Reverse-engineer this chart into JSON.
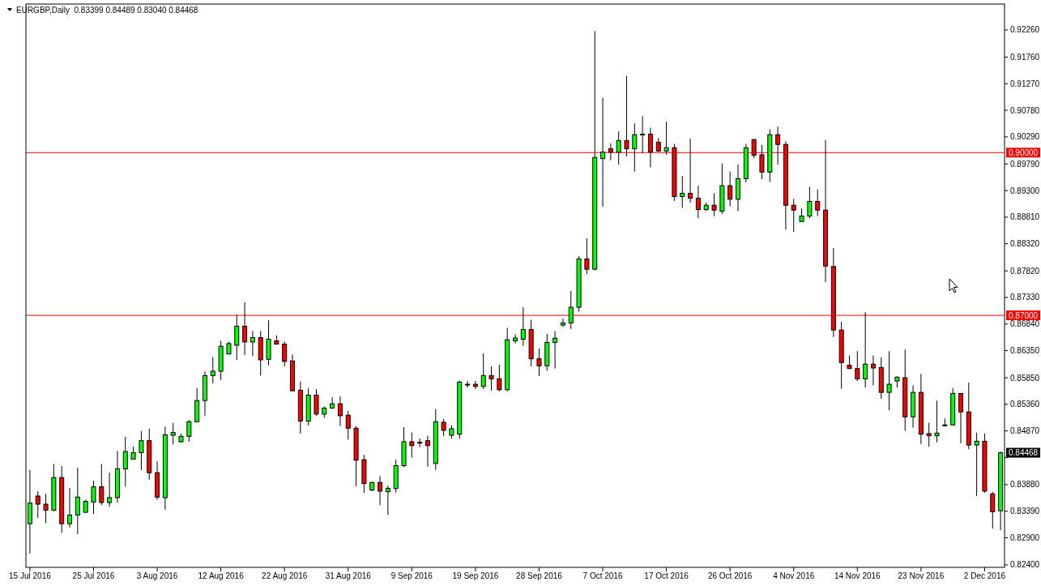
{
  "chart_data": {
    "type": "candlestick",
    "title": "EURGBP,Daily  0.83399 0.84489 0.83040 0.84468",
    "categories": [
      "15 Jul 2016",
      null,
      null,
      null,
      null,
      null,
      null,
      null,
      "25 Jul 2016",
      null,
      null,
      null,
      null,
      null,
      null,
      null,
      "3 Aug 2016",
      null,
      null,
      null,
      null,
      null,
      null,
      null,
      "12 Aug 2016",
      null,
      null,
      null,
      null,
      null,
      null,
      null,
      "22 Aug 2016",
      null,
      null,
      null,
      null,
      null,
      null,
      null,
      "31 Aug 2016",
      null,
      null,
      null,
      null,
      null,
      null,
      null,
      "9 Sep 2016",
      null,
      null,
      null,
      null,
      null,
      null,
      null,
      "19 Sep 2016",
      null,
      null,
      null,
      null,
      null,
      null,
      null,
      "28 Sep 2016",
      null,
      null,
      null,
      null,
      null,
      null,
      null,
      "7 Oct 2016",
      null,
      null,
      null,
      null,
      null,
      null,
      null,
      "17 Oct 2016",
      null,
      null,
      null,
      null,
      null,
      null,
      null,
      "26 Oct 2016",
      null,
      null,
      null,
      null,
      null,
      null,
      null,
      "4 Nov 2016",
      null,
      null,
      null,
      null,
      null,
      null,
      null,
      "14 Nov 2016",
      null,
      null,
      null,
      null,
      null,
      null,
      null,
      "23 Nov 2016",
      null,
      null,
      null,
      null,
      null,
      null,
      null,
      "2 Dec 2016",
      null,
      null
    ],
    "ohlc": [
      [
        0.8316,
        0.8415,
        0.8261,
        0.8354
      ],
      [
        0.8367,
        0.8376,
        0.8327,
        0.8352
      ],
      [
        0.8352,
        0.8371,
        0.8317,
        0.8341
      ],
      [
        0.8341,
        0.8426,
        0.8339,
        0.8401
      ],
      [
        0.8401,
        0.8422,
        0.8299,
        0.8316
      ],
      [
        0.8316,
        0.8382,
        0.8309,
        0.8332
      ],
      [
        0.8332,
        0.8419,
        0.8297,
        0.8365
      ],
      [
        0.8337,
        0.836,
        0.8336,
        0.8357
      ],
      [
        0.8356,
        0.8395,
        0.8334,
        0.8384
      ],
      [
        0.8384,
        0.8426,
        0.835,
        0.8355
      ],
      [
        0.8355,
        0.841,
        0.8347,
        0.8364
      ],
      [
        0.8364,
        0.845,
        0.8355,
        0.8417
      ],
      [
        0.8417,
        0.8476,
        0.8384,
        0.8449
      ],
      [
        0.8435,
        0.8458,
        0.8434,
        0.8447
      ],
      [
        0.8447,
        0.8487,
        0.8415,
        0.8469
      ],
      [
        0.8469,
        0.8491,
        0.8397,
        0.841
      ],
      [
        0.841,
        0.8431,
        0.836,
        0.8365
      ],
      [
        0.8364,
        0.8495,
        0.8342,
        0.848
      ],
      [
        0.8479,
        0.8502,
        0.8462,
        0.8484
      ],
      [
        0.8467,
        0.8482,
        0.8466,
        0.8477
      ],
      [
        0.8477,
        0.8507,
        0.8467,
        0.8504
      ],
      [
        0.8504,
        0.8566,
        0.8503,
        0.8543
      ],
      [
        0.8543,
        0.8597,
        0.8515,
        0.8589
      ],
      [
        0.8589,
        0.8623,
        0.8575,
        0.8597
      ],
      [
        0.8597,
        0.8653,
        0.8581,
        0.8643
      ],
      [
        0.8629,
        0.8652,
        0.8628,
        0.8648
      ],
      [
        0.8645,
        0.8701,
        0.8618,
        0.868
      ],
      [
        0.868,
        0.8724,
        0.8627,
        0.8651
      ],
      [
        0.8651,
        0.8671,
        0.8625,
        0.8659
      ],
      [
        0.8659,
        0.8671,
        0.8589,
        0.8618
      ],
      [
        0.8619,
        0.8691,
        0.8608,
        0.8656
      ],
      [
        0.8653,
        0.8663,
        0.8646,
        0.8647
      ],
      [
        0.8647,
        0.8652,
        0.8606,
        0.8615
      ],
      [
        0.8616,
        0.8628,
        0.856,
        0.8561
      ],
      [
        0.8562,
        0.8578,
        0.8482,
        0.8505
      ],
      [
        0.8505,
        0.8566,
        0.8497,
        0.8553
      ],
      [
        0.8553,
        0.8564,
        0.8515,
        0.8518
      ],
      [
        0.8518,
        0.8532,
        0.8511,
        0.8529
      ],
      [
        0.8529,
        0.8549,
        0.8528,
        0.8537
      ],
      [
        0.8537,
        0.8551,
        0.8496,
        0.8515
      ],
      [
        0.8516,
        0.8524,
        0.8471,
        0.8492
      ],
      [
        0.8492,
        0.8496,
        0.8385,
        0.8433
      ],
      [
        0.8434,
        0.8443,
        0.8373,
        0.839
      ],
      [
        0.8378,
        0.8393,
        0.8376,
        0.8392
      ],
      [
        0.8392,
        0.8404,
        0.835,
        0.8376
      ],
      [
        0.8375,
        0.8386,
        0.8332,
        0.8381
      ],
      [
        0.8381,
        0.8434,
        0.8373,
        0.8423
      ],
      [
        0.8423,
        0.8494,
        0.842,
        0.8467
      ],
      [
        0.8467,
        0.8484,
        0.8438,
        0.846
      ],
      [
        0.8465,
        0.8473,
        0.8457,
        0.8466
      ],
      [
        0.8469,
        0.8478,
        0.8421,
        0.846
      ],
      [
        0.8427,
        0.8527,
        0.8415,
        0.8504
      ],
      [
        0.8503,
        0.8509,
        0.8478,
        0.8488
      ],
      [
        0.8479,
        0.8497,
        0.8473,
        0.8491
      ],
      [
        0.8481,
        0.858,
        0.8473,
        0.8577
      ],
      [
        0.8572,
        0.8579,
        0.8567,
        0.8573
      ],
      [
        0.8573,
        0.8579,
        0.8564,
        0.8569
      ],
      [
        0.8569,
        0.863,
        0.8564,
        0.8589
      ],
      [
        0.8589,
        0.8606,
        0.8561,
        0.8583
      ],
      [
        0.8583,
        0.8609,
        0.856,
        0.8563
      ],
      [
        0.8563,
        0.8677,
        0.856,
        0.8655
      ],
      [
        0.8653,
        0.8665,
        0.8648,
        0.8658
      ],
      [
        0.8656,
        0.8715,
        0.8644,
        0.8674
      ],
      [
        0.8674,
        0.8692,
        0.8606,
        0.862
      ],
      [
        0.862,
        0.8639,
        0.8588,
        0.8607
      ],
      [
        0.8607,
        0.8666,
        0.8598,
        0.865
      ],
      [
        0.865,
        0.8671,
        0.8602,
        0.8658
      ],
      [
        0.8682,
        0.8694,
        0.8679,
        0.8686
      ],
      [
        0.8686,
        0.8745,
        0.8675,
        0.8715
      ],
      [
        0.8715,
        0.8809,
        0.8707,
        0.8804
      ],
      [
        0.8804,
        0.8842,
        0.8776,
        0.8785
      ],
      [
        0.8785,
        0.9224,
        0.8783,
        0.8991
      ],
      [
        0.8989,
        0.9101,
        0.89,
        0.9001
      ],
      [
        0.9007,
        0.9017,
        0.8986,
        0.9001
      ],
      [
        0.9001,
        0.9039,
        0.8978,
        0.9022
      ],
      [
        0.9022,
        0.9141,
        0.8993,
        0.9007
      ],
      [
        0.9007,
        0.9054,
        0.8965,
        0.9033
      ],
      [
        0.9034,
        0.9067,
        0.8999,
        0.9033
      ],
      [
        0.9034,
        0.9046,
        0.8973,
        0.9001
      ],
      [
        0.9019,
        0.9027,
        0.9001,
        0.9003
      ],
      [
        0.9003,
        0.9057,
        0.8996,
        0.9009
      ],
      [
        0.9009,
        0.9016,
        0.8911,
        0.8919
      ],
      [
        0.8919,
        0.8957,
        0.8898,
        0.8925
      ],
      [
        0.8925,
        0.9026,
        0.8908,
        0.8916
      ],
      [
        0.8916,
        0.8939,
        0.8879,
        0.8895
      ],
      [
        0.8895,
        0.8908,
        0.8893,
        0.8903
      ],
      [
        0.8903,
        0.8925,
        0.8883,
        0.8894
      ],
      [
        0.8892,
        0.898,
        0.8887,
        0.8939
      ],
      [
        0.8939,
        0.8965,
        0.8901,
        0.8914
      ],
      [
        0.8914,
        0.8978,
        0.8892,
        0.8952
      ],
      [
        0.8952,
        0.9016,
        0.8945,
        0.9009
      ],
      [
        0.9024,
        0.9025,
        0.899,
        0.8995
      ],
      [
        0.8996,
        0.9014,
        0.8951,
        0.8964
      ],
      [
        0.8964,
        0.9043,
        0.8946,
        0.9033
      ],
      [
        0.9033,
        0.9048,
        0.8978,
        0.9015
      ],
      [
        0.9015,
        0.9021,
        0.8858,
        0.8903
      ],
      [
        0.8903,
        0.8915,
        0.8854,
        0.8894
      ],
      [
        0.8873,
        0.8897,
        0.8872,
        0.8883
      ],
      [
        0.8883,
        0.8937,
        0.8879,
        0.891
      ],
      [
        0.891,
        0.8932,
        0.8883,
        0.8894
      ],
      [
        0.8894,
        0.9023,
        0.8761,
        0.8791
      ],
      [
        0.879,
        0.8824,
        0.866,
        0.8673
      ],
      [
        0.8673,
        0.8688,
        0.8565,
        0.8613
      ],
      [
        0.8608,
        0.8626,
        0.8601,
        0.8602
      ],
      [
        0.8602,
        0.8634,
        0.8579,
        0.8583
      ],
      [
        0.8583,
        0.8706,
        0.8567,
        0.861
      ],
      [
        0.861,
        0.8626,
        0.8571,
        0.8603
      ],
      [
        0.8604,
        0.8623,
        0.8546,
        0.8558
      ],
      [
        0.8558,
        0.8634,
        0.8525,
        0.8573
      ],
      [
        0.8579,
        0.8588,
        0.8567,
        0.8586
      ],
      [
        0.8585,
        0.8637,
        0.8487,
        0.8513
      ],
      [
        0.8513,
        0.8571,
        0.8493,
        0.8558
      ],
      [
        0.8558,
        0.8592,
        0.8463,
        0.8481
      ],
      [
        0.8482,
        0.8502,
        0.8458,
        0.8478
      ],
      [
        0.8478,
        0.8543,
        0.8466,
        0.8483
      ],
      [
        0.8497,
        0.851,
        0.8496,
        0.8498
      ],
      [
        0.8498,
        0.8566,
        0.8497,
        0.8556
      ],
      [
        0.8556,
        0.8557,
        0.8464,
        0.8522
      ],
      [
        0.8522,
        0.8576,
        0.8453,
        0.8461
      ],
      [
        0.8461,
        0.8484,
        0.8367,
        0.8468
      ],
      [
        0.8468,
        0.8482,
        0.8373,
        0.8376
      ],
      [
        0.8371,
        0.8375,
        0.8307,
        0.8338
      ],
      [
        0.83399,
        0.84489,
        0.8304,
        0.84468
      ]
    ],
    "colors": [
      "#00ff00",
      "#ff0000",
      "#ff0000",
      "#00ff00",
      "#ff0000",
      "#00ff00",
      "#00ff00",
      "#00ff00",
      "#00ff00",
      "#ff0000",
      "#00ff00",
      "#00ff00",
      "#00ff00",
      "#00ff00",
      "#00ff00",
      "#ff0000",
      "#ff0000",
      "#00ff00",
      "#00ff00",
      "#00ff00",
      "#00ff00",
      "#00ff00",
      "#00ff00",
      "#00ff00",
      "#00ff00",
      "#00ff00",
      "#00ff00",
      "#ff0000",
      "#00ff00",
      "#ff0000",
      "#00ff00",
      "#ff0000",
      "#ff0000",
      "#ff0000",
      "#ff0000",
      "#00ff00",
      "#ff0000",
      "#00ff00",
      "#00ff00",
      "#ff0000",
      "#ff0000",
      "#ff0000",
      "#ff0000",
      "#00ff00",
      "#ff0000",
      "#00ff00",
      "#00ff00",
      "#00ff00",
      "#ff0000",
      "#00ff00",
      "#ff0000",
      "#00ff00",
      "#ff0000",
      "#00ff00",
      "#00ff00",
      "#00ff00",
      "#ff0000",
      "#00ff00",
      "#ff0000",
      "#ff0000",
      "#00ff00",
      "#00ff00",
      "#00ff00",
      "#ff0000",
      "#ff0000",
      "#00ff00",
      "#00ff00",
      "#00ff00",
      "#00ff00",
      "#00ff00",
      "#ff0000",
      "#00ff00",
      "#00ff00",
      "#ff0000",
      "#00ff00",
      "#ff0000",
      "#00ff00",
      "#ff0000",
      "#ff0000",
      "#ff0000",
      "#00ff00",
      "#ff0000",
      "#00ff00",
      "#ff0000",
      "#ff0000",
      "#00ff00",
      "#ff0000",
      "#00ff00",
      "#ff0000",
      "#00ff00",
      "#00ff00",
      "#ff0000",
      "#ff0000",
      "#00ff00",
      "#ff0000",
      "#ff0000",
      "#ff0000",
      "#00ff00",
      "#00ff00",
      "#ff0000",
      "#ff0000",
      "#ff0000",
      "#ff0000",
      "#ff0000",
      "#ff0000",
      "#00ff00",
      "#ff0000",
      "#ff0000",
      "#00ff00",
      "#00ff00",
      "#ff0000",
      "#00ff00",
      "#ff0000",
      "#ff0000",
      "#00ff00",
      "#00ff00",
      "#00ff00",
      "#ff0000",
      "#ff0000",
      "#00ff00",
      "#ff0000",
      "#ff0000",
      "#00ff00"
    ],
    "ylim": [
      0.82355,
      0.92738
    ],
    "yticks": [
      {
        "value": 0.824,
        "label": "0.82400"
      },
      {
        "value": 0.829,
        "label": "0.82900"
      },
      {
        "value": 0.8339,
        "label": "0.83390"
      },
      {
        "value": 0.8388,
        "label": "0.83880"
      },
      {
        "value": 0.8438,
        "label": null
      },
      {
        "value": 0.8487,
        "label": "0.84870"
      },
      {
        "value": 0.8536,
        "label": "0.85360"
      },
      {
        "value": 0.8585,
        "label": "0.85850"
      },
      {
        "value": 0.8635,
        "label": "0.86350"
      },
      {
        "value": 0.8684,
        "label": "0.86840"
      },
      {
        "value": 0.8733,
        "label": "0.87330"
      },
      {
        "value": 0.8782,
        "label": "0.87820"
      },
      {
        "value": 0.8832,
        "label": "0.88320"
      },
      {
        "value": 0.8881,
        "label": "0.88810"
      },
      {
        "value": 0.893,
        "label": "0.89300"
      },
      {
        "value": 0.8979,
        "label": "0.89790"
      },
      {
        "value": 0.9029,
        "label": "0.90290"
      },
      {
        "value": 0.9078,
        "label": "0.90780"
      },
      {
        "value": 0.9127,
        "label": "0.91270"
      },
      {
        "value": 0.9176,
        "label": "0.91760"
      },
      {
        "value": 0.9226,
        "label": "0.92260"
      }
    ],
    "ref_lines": [
      {
        "axis": "y",
        "value": 0.9,
        "label": "0.90000",
        "color": "#ff0000"
      },
      {
        "axis": "y",
        "value": 0.87,
        "label": "0.87000",
        "color": "#ff0000"
      }
    ],
    "annotations": [
      "0.84468"
    ],
    "grid": false
  }
}
